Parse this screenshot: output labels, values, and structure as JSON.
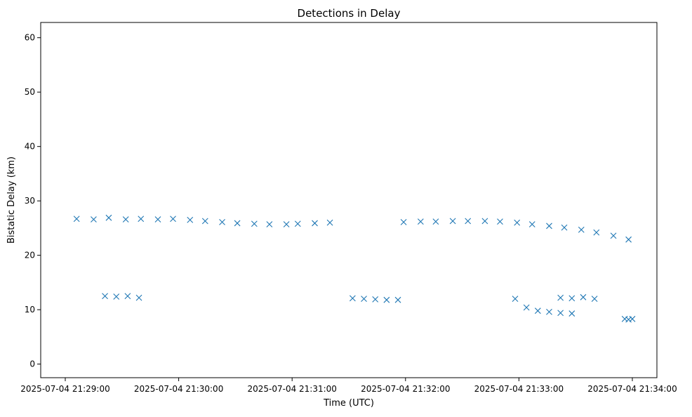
{
  "chart_data": {
    "type": "scatter",
    "title": "Detections in Delay",
    "xlabel": "Time (UTC)",
    "ylabel": "Bistatic Delay (km)",
    "x_unit": "time",
    "x_ticks": [
      "2025-07-04 21:29:00",
      "2025-07-04 21:30:00",
      "2025-07-04 21:31:00",
      "2025-07-04 21:32:00",
      "2025-07-04 21:33:00",
      "2025-07-04 21:34:00"
    ],
    "y_ticks": [
      "0",
      "10",
      "20",
      "30",
      "40",
      "50",
      "60"
    ],
    "xlim": [
      "2025-07-04 21:28:47",
      "2025-07-04 21:34:13"
    ],
    "ylim": [
      -2.5,
      62.8
    ],
    "grid": false,
    "marker": "x",
    "color": "#1f77b4",
    "series": [
      {
        "points": [
          [
            "21:29:06",
            26.7
          ],
          [
            "21:29:15",
            26.6
          ],
          [
            "21:29:23",
            26.9
          ],
          [
            "21:29:32",
            26.6
          ],
          [
            "21:29:40",
            26.7
          ],
          [
            "21:29:49",
            26.6
          ],
          [
            "21:29:57",
            26.7
          ],
          [
            "21:30:06",
            26.5
          ],
          [
            "21:30:14",
            26.3
          ],
          [
            "21:30:23",
            26.1
          ],
          [
            "21:30:31",
            25.9
          ],
          [
            "21:30:40",
            25.8
          ],
          [
            "21:30:48",
            25.7
          ],
          [
            "21:30:57",
            25.7
          ],
          [
            "21:31:03",
            25.8
          ],
          [
            "21:31:12",
            25.9
          ],
          [
            "21:31:20",
            26.0
          ],
          [
            "21:31:59",
            26.1
          ],
          [
            "21:32:08",
            26.2
          ],
          [
            "21:32:16",
            26.2
          ],
          [
            "21:32:25",
            26.3
          ],
          [
            "21:32:33",
            26.3
          ],
          [
            "21:32:42",
            26.3
          ],
          [
            "21:32:50",
            26.2
          ],
          [
            "21:32:59",
            26.0
          ],
          [
            "21:33:07",
            25.7
          ],
          [
            "21:33:16",
            25.4
          ],
          [
            "21:33:24",
            25.1
          ],
          [
            "21:33:33",
            24.7
          ],
          [
            "21:33:41",
            24.2
          ],
          [
            "21:33:50",
            23.6
          ],
          [
            "21:33:58",
            22.9
          ],
          [
            "21:29:21",
            12.5
          ],
          [
            "21:29:27",
            12.4
          ],
          [
            "21:29:33",
            12.5
          ],
          [
            "21:29:39",
            12.2
          ],
          [
            "21:31:32",
            12.1
          ],
          [
            "21:31:38",
            12.0
          ],
          [
            "21:31:44",
            11.9
          ],
          [
            "21:31:50",
            11.8
          ],
          [
            "21:31:56",
            11.8
          ],
          [
            "21:32:58",
            12.0
          ],
          [
            "21:33:04",
            10.4
          ],
          [
            "21:33:10",
            9.8
          ],
          [
            "21:33:16",
            9.6
          ],
          [
            "21:33:22",
            9.4
          ],
          [
            "21:33:28",
            9.3
          ],
          [
            "21:33:22",
            12.2
          ],
          [
            "21:33:28",
            12.1
          ],
          [
            "21:33:34",
            12.3
          ],
          [
            "21:33:40",
            12.0
          ],
          [
            "21:33:56",
            8.3
          ],
          [
            "21:33:58",
            8.2
          ],
          [
            "21:34:00",
            8.3
          ]
        ]
      }
    ]
  }
}
